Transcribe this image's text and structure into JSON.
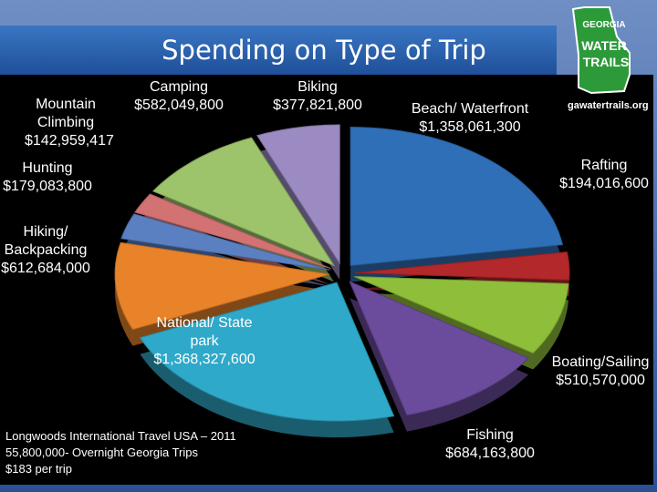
{
  "title": "Spending on Type of Trip",
  "logo": {
    "line1": "GEORGIA",
    "line2": "WATER",
    "line3": "TRAILS",
    "url": "gawatertrails.org"
  },
  "chart_data": {
    "type": "pie",
    "categories": [
      "Beach/ Waterfront",
      "Rafting",
      "Boating/Sailing",
      "Fishing",
      "National/ State park",
      "Hiking/ Backpacking",
      "Hunting",
      "Mountain Climbing",
      "Camping",
      "Biking"
    ],
    "values": [
      1358061300,
      194016600,
      510570000,
      684163800,
      1368327600,
      612684000,
      179083800,
      142959417,
      582049800,
      377821800
    ],
    "value_labels": [
      "$1,358,061,300",
      "$194,016,600",
      "$510,570,000",
      "$684,163,800",
      "$1,368,327,600",
      "$612,684,000",
      "$179,083,800",
      "$142,959,417",
      "$582,049,800",
      "$377,821,800"
    ],
    "colors": [
      "#2f6fb8",
      "#b3282a",
      "#8fbf3a",
      "#6b4b9c",
      "#2fa9c9",
      "#e8832a",
      "#5b80c2",
      "#d27272",
      "#9dc46b",
      "#9b8bc2"
    ]
  },
  "notes": [
    "Longwoods International Travel USA – 2011",
    "55,800,000- Overnight Georgia Trips",
    "$183 per trip"
  ]
}
